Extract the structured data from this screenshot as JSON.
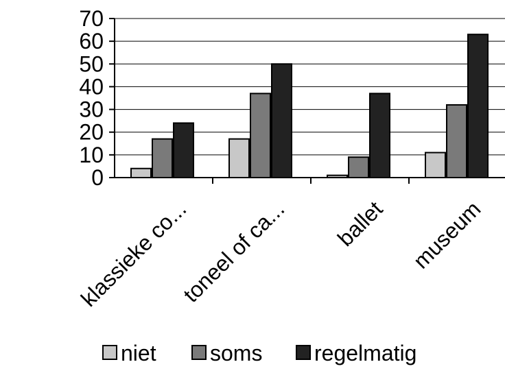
{
  "chart_data": {
    "type": "bar",
    "title": "",
    "xlabel": "",
    "ylabel": "",
    "categories": [
      "klassieke co...",
      "toneel of ca...",
      "ballet",
      "museum"
    ],
    "series": [
      {
        "name": "niet",
        "values": [
          4,
          17,
          1,
          11
        ],
        "color": "#c8c8c8"
      },
      {
        "name": "soms",
        "values": [
          17,
          37,
          9,
          32
        ],
        "color": "#7a7a7a"
      },
      {
        "name": "regelmatig",
        "values": [
          24,
          50,
          37,
          63
        ],
        "color": "#222222"
      }
    ],
    "ylim": [
      0,
      70
    ],
    "yticks": [
      0,
      10,
      20,
      30,
      40,
      50,
      60,
      70
    ],
    "grid": true,
    "legend": "bottom"
  }
}
